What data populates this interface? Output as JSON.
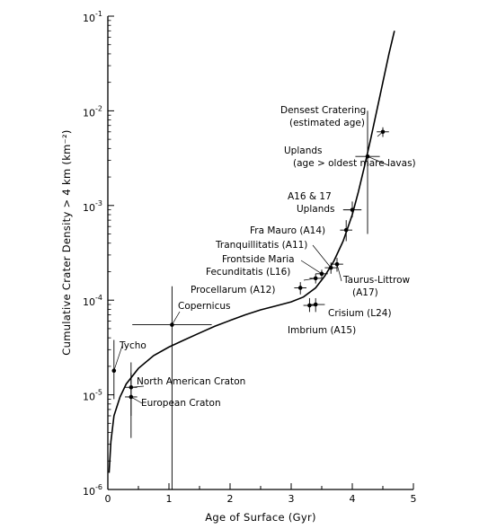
{
  "chart_data": {
    "type": "scatter",
    "xlabel": "Age of Surface  (Gyr)",
    "ylabel": "Cumulative Crater Density > 4 km  (km⁻²)",
    "xlim": [
      0,
      5
    ],
    "ylim": [
      1e-06,
      0.1
    ],
    "yscale": "log",
    "grid": false,
    "x_ticks": [
      "0",
      "1",
      "2",
      "3",
      "4",
      "5"
    ],
    "y_ticks": [
      {
        "base": "10",
        "exp": "-6",
        "v": 1e-06
      },
      {
        "base": "10",
        "exp": "-5",
        "v": 1e-05
      },
      {
        "base": "10",
        "exp": "-4",
        "v": 0.0001
      },
      {
        "base": "10",
        "exp": "-3",
        "v": 0.001
      },
      {
        "base": "10",
        "exp": "-2",
        "v": 0.01
      },
      {
        "base": "10",
        "exp": "-1",
        "v": 0.1
      }
    ],
    "curve": [
      [
        0.02,
        1.5e-06
      ],
      [
        0.05,
        3.2e-06
      ],
      [
        0.1,
        6e-06
      ],
      [
        0.2,
        9.5e-06
      ],
      [
        0.3,
        1.3e-05
      ],
      [
        0.5,
        1.9e-05
      ],
      [
        0.75,
        2.6e-05
      ],
      [
        1.0,
        3.2e-05
      ],
      [
        1.25,
        3.8e-05
      ],
      [
        1.5,
        4.5e-05
      ],
      [
        1.75,
        5.3e-05
      ],
      [
        2.0,
        6.1e-05
      ],
      [
        2.25,
        7e-05
      ],
      [
        2.5,
        7.9e-05
      ],
      [
        2.75,
        8.7e-05
      ],
      [
        3.0,
        9.6e-05
      ],
      [
        3.2,
        0.000108
      ],
      [
        3.4,
        0.000135
      ],
      [
        3.55,
        0.00018
      ],
      [
        3.7,
        0.00026
      ],
      [
        3.85,
        0.00042
      ],
      [
        4.0,
        0.0008
      ],
      [
        4.1,
        0.0014
      ],
      [
        4.2,
        0.0026
      ],
      [
        4.3,
        0.005
      ],
      [
        4.4,
        0.01
      ],
      [
        4.5,
        0.02
      ],
      [
        4.6,
        0.04
      ],
      [
        4.69,
        0.07
      ]
    ],
    "points": [
      {
        "label": "Tycho",
        "x": 0.1,
        "y": 1.8e-05,
        "xerr": [
          0.07,
          0.13
        ],
        "yerr": [
          9e-06,
          3.8e-05
        ]
      },
      {
        "label": "North American Craton",
        "x": 0.38,
        "y": 1.2e-05,
        "xerr": [
          0.28,
          0.48
        ],
        "yerr": [
          6e-06,
          2.2e-05
        ]
      },
      {
        "label": "European Craton",
        "x": 0.38,
        "y": 9.5e-06,
        "xerr": [
          0.28,
          0.48
        ],
        "yerr": [
          3.5e-06,
          1.7e-05
        ]
      },
      {
        "label": "Copernicus",
        "x": 1.05,
        "y": 5.5e-05,
        "xerr": [
          0.4,
          1.7
        ],
        "yerr": [
          1e-06,
          0.00014
        ]
      },
      {
        "label": "Procellarum (A12)",
        "x": 3.15,
        "y": 0.000135,
        "xerr": [
          3.05,
          3.25
        ],
        "yerr": [
          0.000115,
          0.000155
        ]
      },
      {
        "label": "Fecunditatis (L16)",
        "x": 3.4,
        "y": 0.00017,
        "xerr": [
          3.3,
          3.5
        ],
        "yerr": [
          0.00015,
          0.00019
        ]
      },
      {
        "label": "Frontside Maria",
        "x": 3.5,
        "y": 0.00019,
        "xerr": [
          3.4,
          3.6
        ],
        "yerr": [
          0.00017,
          0.00021
        ]
      },
      {
        "label": "Tranquillitatis (A11)",
        "x": 3.65,
        "y": 0.00022,
        "xerr": [
          3.55,
          3.75
        ],
        "yerr": [
          0.00019,
          0.00025
        ]
      },
      {
        "label": "Taurus-Littrow (A17)",
        "x": 3.75,
        "y": 0.00024,
        "xerr": [
          3.65,
          3.85
        ],
        "yerr": [
          0.0002,
          0.00028
        ]
      },
      {
        "label": "Fra Mauro (A14)",
        "x": 3.9,
        "y": 0.00055,
        "xerr": [
          3.8,
          4.0
        ],
        "yerr": [
          0.00042,
          0.0007
        ]
      },
      {
        "label": "Crisium (L24)",
        "x": 3.4,
        "y": 9e-05,
        "xerr": [
          3.3,
          3.55
        ],
        "yerr": [
          7.5e-05,
          0.000105
        ]
      },
      {
        "label": "Imbrium (A15)",
        "x": 3.3,
        "y": 8.8e-05,
        "xerr": [
          3.2,
          3.4
        ],
        "yerr": [
          7.5e-05,
          0.000105
        ]
      },
      {
        "label": "A16 & 17 Uplands",
        "x": 4.0,
        "y": 0.0009,
        "xerr": [
          3.85,
          4.15
        ],
        "yerr": [
          0.00075,
          0.0011
        ]
      },
      {
        "label": "Uplands (age > oldest mare lavas)",
        "x": 4.25,
        "y": 0.0033,
        "xerr": [
          4.05,
          4.45
        ],
        "yerr": [
          0.0005,
          0.01
        ]
      },
      {
        "label": "Densest Cratering (estimated age)",
        "x": 4.5,
        "y": 0.006,
        "xerr": [
          4.4,
          4.6
        ],
        "yerr": [
          0.0053,
          0.0067
        ]
      }
    ],
    "annotations": [
      {
        "id": "tycho",
        "lines": [
          "Tycho"
        ]
      },
      {
        "id": "nac",
        "lines": [
          "North American Craton"
        ]
      },
      {
        "id": "euro",
        "lines": [
          "European Craton"
        ]
      },
      {
        "id": "copernicus",
        "lines": [
          "Copernicus"
        ]
      },
      {
        "id": "procellarum",
        "lines": [
          "Procellarum (A12)"
        ]
      },
      {
        "id": "fecunditatis",
        "lines": [
          "Fecunditatis (L16)"
        ]
      },
      {
        "id": "frontside",
        "lines": [
          "Frontside Maria"
        ]
      },
      {
        "id": "tranquillitatis",
        "lines": [
          "Tranquillitatis (A11)"
        ]
      },
      {
        "id": "framauro",
        "lines": [
          "Fra Mauro (A14)"
        ]
      },
      {
        "id": "a16",
        "lines": [
          "A16 & 17",
          "Uplands"
        ]
      },
      {
        "id": "uplands",
        "lines": [
          "Uplands",
          "(age > oldest mare lavas)"
        ]
      },
      {
        "id": "densest",
        "lines": [
          "Densest Cratering",
          "(estimated age)"
        ]
      },
      {
        "id": "taurus",
        "lines": [
          "Taurus-Littrow",
          "(A17)"
        ]
      },
      {
        "id": "crisium",
        "lines": [
          "Crisium (L24)"
        ]
      },
      {
        "id": "imbrium",
        "lines": [
          "Imbrium (A15)"
        ]
      }
    ]
  }
}
